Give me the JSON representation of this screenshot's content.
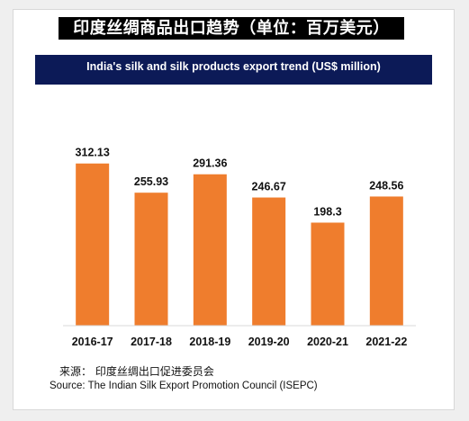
{
  "page": {
    "title_cn": "印度丝绸商品出口趋势（单位：百万美元）",
    "title_en": "India's silk and silk products export trend (US$ million)",
    "source_cn": "来源：  印度丝绸出口促进委员会",
    "source_en": "Source: The Indian Silk Export Promotion Council (ISEPC)"
  },
  "colors": {
    "bar": "#ef7d2d",
    "title_bar_bg": "#0c1a57",
    "title_cn_bg": "#000000"
  },
  "chart_data": {
    "type": "bar",
    "title": "India's silk and silk products export trend (US$ million)",
    "categories": [
      "2016-17",
      "2017-18",
      "2018-19",
      "2019-20",
      "2020-21",
      "2021-22"
    ],
    "values": [
      312.13,
      255.93,
      291.36,
      246.67,
      198.3,
      248.56
    ],
    "data_labels": [
      "312.13",
      "255.93",
      "291.36",
      "246.67",
      "198.3",
      "248.56"
    ],
    "xlabel": "",
    "ylabel": "",
    "ylim": [
      0,
      400
    ],
    "grid": false,
    "legend": "none"
  }
}
